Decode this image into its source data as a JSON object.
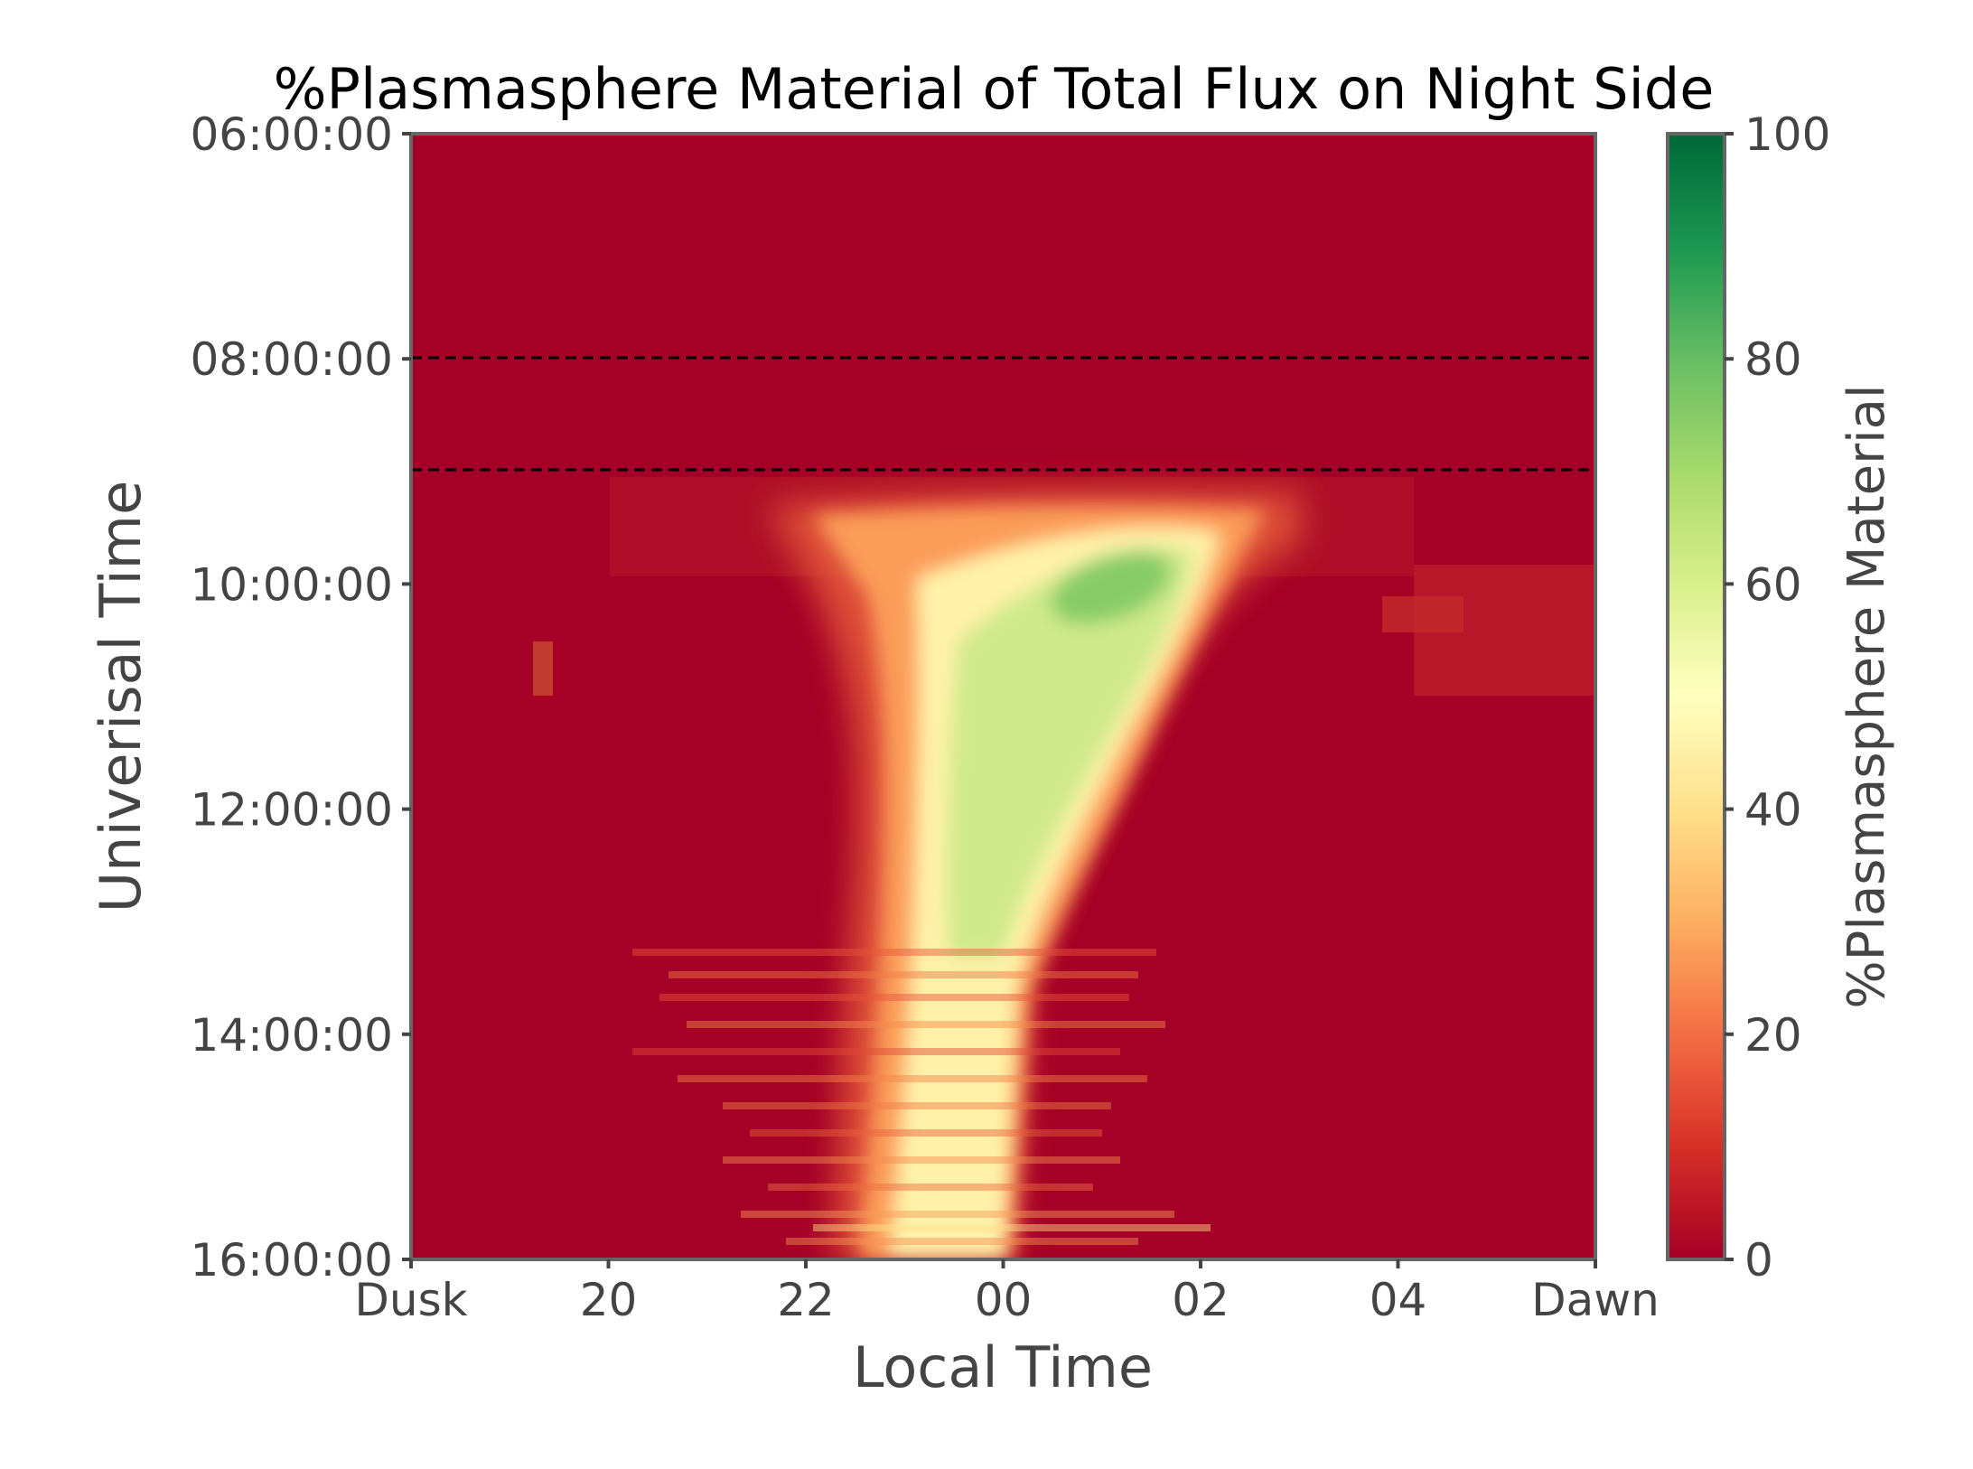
{
  "chart_data": {
    "type": "heatmap",
    "title": "%Plasmasphere Material of Total Flux on Night Side",
    "xlabel": "Local Time",
    "ylabel": "Univerisal Time",
    "x_tick_labels": [
      "Dusk",
      "20",
      "22",
      "00",
      "02",
      "04",
      "Dawn"
    ],
    "x_range_hours_from_dusk": [
      0,
      12
    ],
    "y_tick_labels": [
      "06:00:00",
      "08:00:00",
      "10:00:00",
      "12:00:00",
      "14:00:00",
      "16:00:00"
    ],
    "y_range_ut": [
      "06:00:00",
      "16:00:00"
    ],
    "y_inverted": true,
    "reference_lines_ut": [
      "08:00:00",
      "09:00:00"
    ],
    "reference_line_style": "dashed black",
    "colorbar": {
      "label": "%Plasmasphere Material",
      "range": [
        0,
        100
      ],
      "tick_labels": [
        "0",
        "20",
        "40",
        "60",
        "80",
        "100"
      ],
      "colormap": "RdYlGn",
      "stops": [
        "#a50026",
        "#d73027",
        "#f46d43",
        "#fdae61",
        "#fee08b",
        "#ffffbf",
        "#d9ef8b",
        "#a6d96a",
        "#66bd63",
        "#1a9850",
        "#006837"
      ]
    },
    "features": [
      {
        "desc": "plume",
        "ut_start": "09:15:00",
        "ut_peak": "10:00:00",
        "lt_peak": "01:00",
        "peak_value": 70
      },
      {
        "desc": "plume base",
        "ut": "16:00:00",
        "lt_center": "23:30",
        "value": 50
      }
    ],
    "grid": false
  }
}
